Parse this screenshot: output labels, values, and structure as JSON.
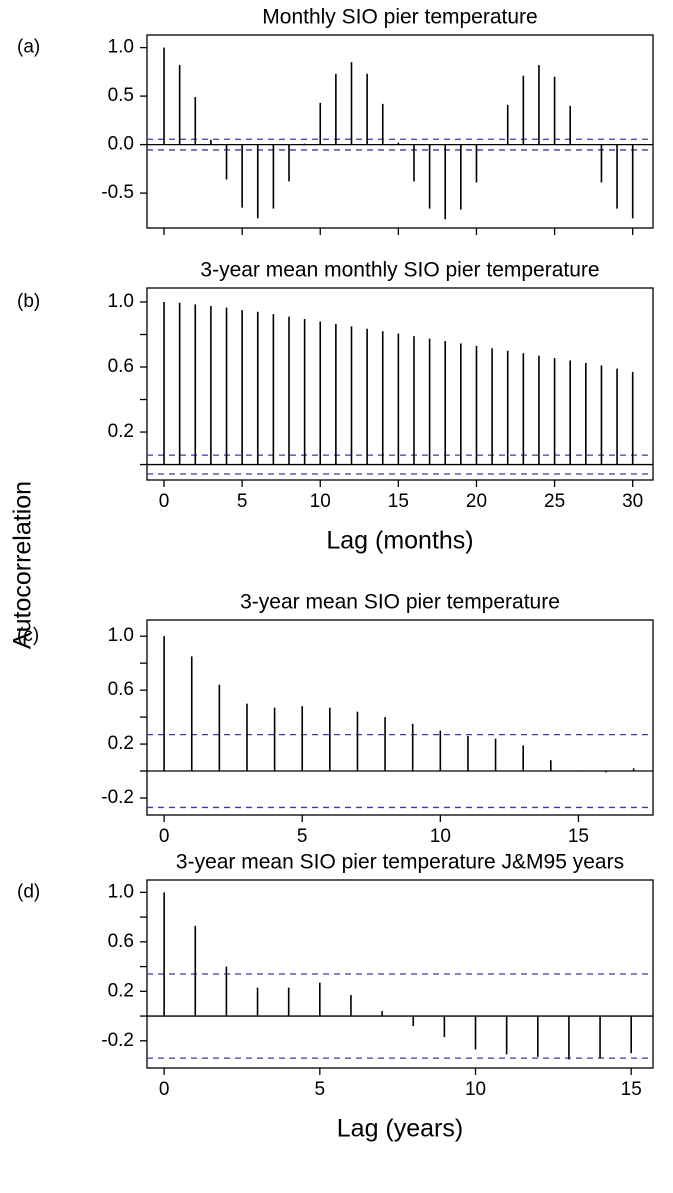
{
  "chart_data": [
    {
      "type": "stem",
      "panel_label": "(a)",
      "title": "Monthly SIO pier temperature",
      "x": [
        0,
        1,
        2,
        3,
        4,
        5,
        6,
        7,
        8,
        9,
        10,
        11,
        12,
        13,
        14,
        15,
        16,
        17,
        18,
        19,
        20,
        21,
        22,
        23,
        24,
        25,
        26,
        27,
        28,
        29,
        30
      ],
      "values": [
        1.0,
        0.82,
        0.49,
        0.05,
        -0.36,
        -0.65,
        -0.76,
        -0.66,
        -0.38,
        0.01,
        0.43,
        0.73,
        0.85,
        0.73,
        0.42,
        0.02,
        -0.38,
        -0.66,
        -0.77,
        -0.67,
        -0.39,
        0.0,
        0.41,
        0.71,
        0.82,
        0.7,
        0.4,
        0.0,
        -0.39,
        -0.66,
        -0.76
      ],
      "color": "#000000",
      "conf_limits": [
        0.055,
        -0.055
      ],
      "conf_color": "#3b3ba8",
      "xlim": [
        -1.09,
        31.3
      ],
      "ylim": [
        -0.86,
        1.13
      ],
      "xticks": [
        {
          "value": 0,
          "label": null
        },
        {
          "value": 5,
          "label": null
        },
        {
          "value": 10,
          "label": null
        },
        {
          "value": 15,
          "label": null
        },
        {
          "value": 20,
          "label": null
        },
        {
          "value": 25,
          "label": null
        },
        {
          "value": 30,
          "label": null
        }
      ],
      "yticks": [
        -0.5,
        {
          "value": 0,
          "label": "0.0"
        },
        0.5,
        {
          "value": 1,
          "label": "1.0"
        }
      ]
    },
    {
      "type": "stem",
      "panel_label": "(b)",
      "title": "3-year mean monthly SIO pier temperature",
      "x": [
        0,
        1,
        2,
        3,
        4,
        5,
        6,
        7,
        8,
        9,
        10,
        11,
        12,
        13,
        14,
        15,
        16,
        17,
        18,
        19,
        20,
        21,
        22,
        23,
        24,
        25,
        26,
        27,
        28,
        29,
        30
      ],
      "values": [
        1.0,
        0.995,
        0.985,
        0.975,
        0.965,
        0.95,
        0.94,
        0.925,
        0.91,
        0.895,
        0.88,
        0.865,
        0.85,
        0.835,
        0.82,
        0.805,
        0.79,
        0.775,
        0.76,
        0.745,
        0.73,
        0.715,
        0.7,
        0.685,
        0.67,
        0.655,
        0.64,
        0.625,
        0.61,
        0.59,
        0.57
      ],
      "color": "#000000",
      "conf_limits": [
        0.058,
        -0.058
      ],
      "conf_color": "#3b3ba8",
      "xlim": [
        -1.09,
        31.3
      ],
      "ylim": [
        -0.095,
        1.086
      ],
      "xticks": [
        0,
        5,
        10,
        15,
        20,
        25,
        30
      ],
      "yticks": [
        {
          "value": 0,
          "label": null
        },
        0.2,
        {
          "value": 0.4,
          "label": null
        },
        0.6,
        {
          "value": 0.8,
          "label": null
        },
        {
          "value": 1,
          "label": "1.0"
        }
      ],
      "xlabel": "Lag (months)"
    },
    {
      "type": "stem",
      "panel_label": "(c)",
      "title": "3-year mean SIO pier temperature",
      "x": [
        0,
        1,
        2,
        3,
        4,
        5,
        6,
        7,
        8,
        9,
        10,
        11,
        12,
        13,
        14,
        15,
        16,
        17
      ],
      "values": [
        1.0,
        0.85,
        0.64,
        0.5,
        0.47,
        0.48,
        0.47,
        0.44,
        0.4,
        0.35,
        0.3,
        0.26,
        0.24,
        0.19,
        0.08,
        0.005,
        -0.01,
        0.02
      ],
      "color": "#000000",
      "conf_limits": [
        0.27,
        -0.27
      ],
      "conf_color": "#3b3ba8",
      "xlim": [
        -0.62,
        17.7
      ],
      "ylim": [
        -0.326,
        1.12
      ],
      "xticks": [
        0,
        5,
        10,
        15
      ],
      "yticks": [
        -0.2,
        {
          "value": 0,
          "label": null
        },
        0.2,
        {
          "value": 0.4,
          "label": null
        },
        0.6,
        {
          "value": 0.8,
          "label": null
        },
        {
          "value": 1,
          "label": "1.0"
        }
      ]
    },
    {
      "type": "stem",
      "panel_label": "(d)",
      "title": "3-year mean SIO pier temperature J&M95 years",
      "x": [
        0,
        1,
        2,
        3,
        4,
        5,
        6,
        7,
        8,
        9,
        10,
        11,
        12,
        13,
        14,
        15
      ],
      "values": [
        1.0,
        0.73,
        0.4,
        0.23,
        0.23,
        0.27,
        0.17,
        0.04,
        -0.08,
        -0.17,
        -0.27,
        -0.31,
        -0.33,
        -0.35,
        -0.34,
        -0.3
      ],
      "color": "#000000",
      "conf_limits": [
        0.34,
        -0.34
      ],
      "conf_color": "#3b3ba8",
      "xlim": [
        -0.55,
        15.7
      ],
      "ylim": [
        -0.42,
        1.1
      ],
      "xticks": [
        0,
        5,
        10,
        15
      ],
      "yticks": [
        -0.2,
        {
          "value": 0,
          "label": null
        },
        0.2,
        {
          "value": 0.4,
          "label": null
        },
        0.6,
        {
          "value": 0.8,
          "label": null
        },
        {
          "value": 1,
          "label": "1.0"
        }
      ],
      "xlabel": "Lag (years)"
    }
  ],
  "ylabel": "Autocorrelation"
}
